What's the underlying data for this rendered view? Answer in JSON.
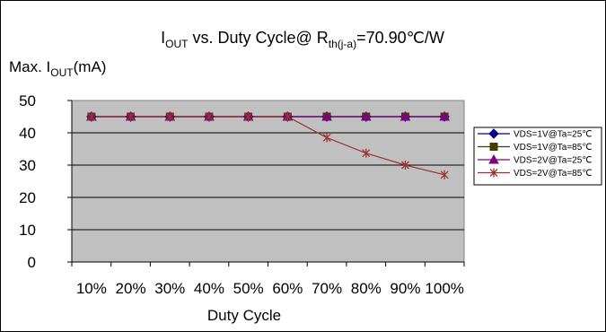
{
  "chart_data": {
    "type": "line",
    "title": {
      "prefix": "I",
      "prefix_sub": "OUT",
      "mid": " vs. Duty Cycle@ R",
      "mid_sub": "th(j-a)",
      "suffix": "=70.90℃/W"
    },
    "ylabel": {
      "prefix": "Max. I",
      "sub": "OUT",
      "suffix": "(mA)"
    },
    "xlabel": "Duty Cycle",
    "ylim": [
      0,
      50
    ],
    "yticks": [
      "0",
      "10",
      "20",
      "30",
      "40",
      "50"
    ],
    "categories": [
      "10%",
      "20%",
      "30%",
      "40%",
      "50%",
      "60%",
      "70%",
      "80%",
      "90%",
      "100%"
    ],
    "grid": true,
    "legend_position": "right",
    "plot_background": "#c0c0c0",
    "series": [
      {
        "name": "VDS=1V@Ta=25℃",
        "color": "#000080",
        "marker": "diamond",
        "values": [
          45,
          45,
          45,
          45,
          45,
          45,
          45,
          45,
          45,
          45
        ]
      },
      {
        "name": "VDS=1V@Ta=85℃",
        "color": "#3f3f00",
        "marker": "square",
        "values": [
          45,
          45,
          45,
          45,
          45,
          45,
          45,
          45,
          45,
          45
        ]
      },
      {
        "name": "VDS=2V@Ta=25℃",
        "color": "#800080",
        "marker": "triangle",
        "values": [
          45,
          45,
          45,
          45,
          45,
          45,
          45,
          45,
          45,
          45
        ]
      },
      {
        "name": "VDS=2V@Ta=85℃",
        "color": "#993333",
        "marker": "star",
        "values": [
          45,
          45,
          45,
          45,
          45,
          45,
          38.5,
          33.7,
          30,
          27
        ]
      }
    ]
  }
}
